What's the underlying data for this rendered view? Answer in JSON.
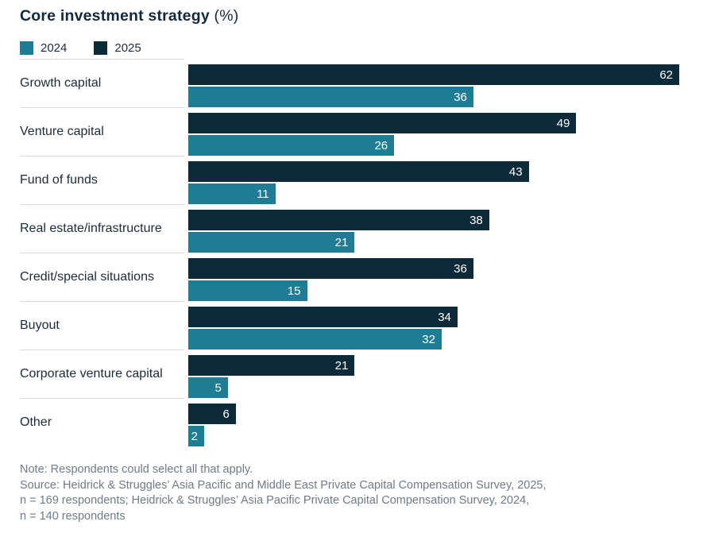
{
  "title": {
    "main": "Core investment strategy",
    "suffix": "(%)"
  },
  "legend": [
    {
      "label": "2024",
      "color": "#1E7D94"
    },
    {
      "label": "2025",
      "color": "#0D2A3A"
    }
  ],
  "chart_data": {
    "type": "bar",
    "orientation": "horizontal",
    "title": "Core investment strategy (%)",
    "categories": [
      "Growth capital",
      "Venture capital",
      "Fund of funds",
      "Real estate/infrastructure",
      "Credit/special situations",
      "Buyout",
      "Corporate venture capital",
      "Other"
    ],
    "series": [
      {
        "name": "2025",
        "color": "#0D2A3A",
        "values": [
          62,
          49,
          43,
          38,
          36,
          34,
          21,
          6
        ]
      },
      {
        "name": "2024",
        "color": "#1E7D94",
        "values": [
          36,
          26,
          11,
          21,
          15,
          32,
          5,
          2
        ]
      }
    ],
    "xlim": [
      0,
      62
    ],
    "value_labels": "inside-end",
    "grid": false,
    "legend_position": "top-left"
  },
  "footer": {
    "note": "Note: Respondents could select all that apply.",
    "source_lines": [
      "Source: Heidrick & Struggles’ Asia Pacific and Middle East Private Capital Compensation Survey, 2025,",
      "n = 169 respondents; Heidrick & Struggles’ Asia Pacific Private Capital Compensation Survey, 2024,",
      "n = 140 respondents"
    ]
  }
}
